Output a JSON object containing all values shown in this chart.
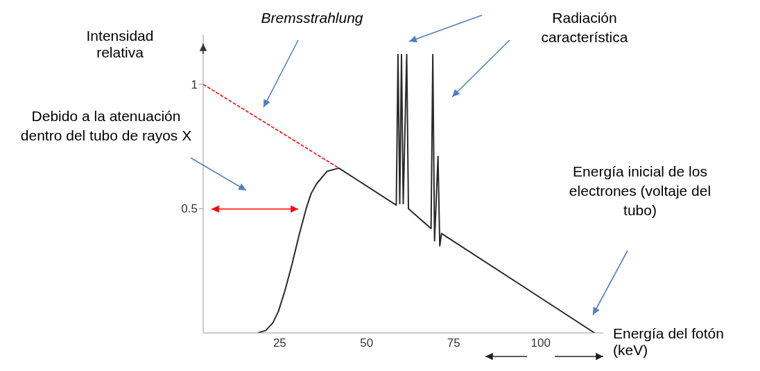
{
  "chart_data": {
    "type": "line",
    "ylabel": "Intensidad relativa",
    "xlabel": "Energía del fotón (keV)",
    "annotations": [
      "Bremsstrahlung",
      "Radiación característica",
      "Debido a la atenuación dentro del tubo de rayos X",
      "Energía inicial de los electrones (voltaje del tubo)"
    ],
    "xlim": [
      3,
      118
    ],
    "xticks": [
      25,
      50,
      75,
      100
    ],
    "ylim": [
      0,
      1.2
    ],
    "yticks": [
      0.5,
      1
    ],
    "series": [
      {
        "color": "#2a2a2a",
        "x": [
          18.7,
          21,
          23,
          24.6,
          26.5,
          28.6,
          30.5,
          32.6,
          34,
          35.6,
          38.6,
          42,
          58.5,
          59,
          59.5,
          60,
          60.5,
          61.5,
          62,
          68.5,
          69,
          69.5,
          70.5,
          71,
          71.5,
          115.5
        ],
        "values": [
          0,
          0.01,
          0.04,
          0.086,
          0.17,
          0.28,
          0.39,
          0.5,
          0.56,
          0.6,
          0.65,
          0.663,
          0.514,
          1.12,
          0.52,
          1.12,
          0.52,
          1.12,
          0.5,
          0.42,
          1.12,
          0.37,
          0.71,
          0.35,
          0.4,
          0
        ]
      },
      {
        "color": "#ff0000",
        "line_style": "dashed",
        "x": [
          3,
          42
        ],
        "values": [
          1,
          0.663
        ]
      }
    ]
  }
}
